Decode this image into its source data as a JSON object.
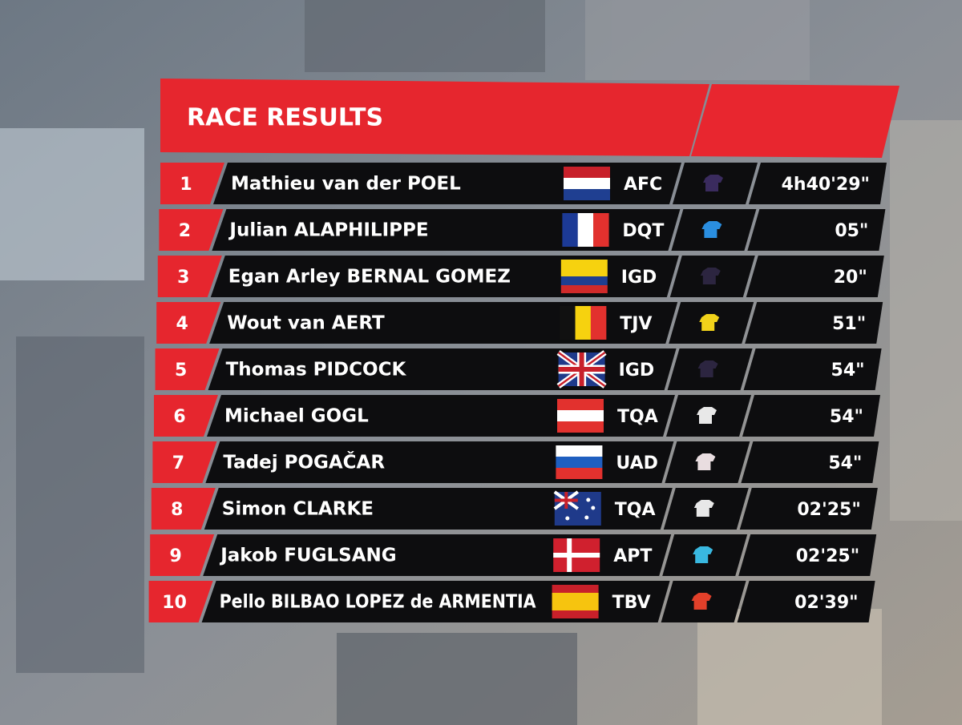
{
  "header": {
    "title": "RACE RESULTS"
  },
  "results": [
    {
      "rank": 1,
      "name": "Mathieu van der POEL",
      "team": "AFC",
      "time": "4h40'29\""
    },
    {
      "rank": 2,
      "name": "Julian ALAPHILIPPE",
      "team": "DQT",
      "time": "05\""
    },
    {
      "rank": 3,
      "name": "Egan Arley BERNAL GOMEZ",
      "team": "IGD",
      "time": "20\""
    },
    {
      "rank": 4,
      "name": "Wout van AERT",
      "team": "TJV",
      "time": "51\""
    },
    {
      "rank": 5,
      "name": "Thomas PIDCOCK",
      "team": "IGD",
      "time": "54\""
    },
    {
      "rank": 6,
      "name": "Michael GOGL",
      "team": "TQA",
      "time": "54\""
    },
    {
      "rank": 7,
      "name": "Tadej POGAČAR",
      "team": "UAD",
      "time": "54\""
    },
    {
      "rank": 8,
      "name": "Simon CLARKE",
      "team": "TQA",
      "time": "02'25\""
    },
    {
      "rank": 9,
      "name": "Jakob FUGLSANG",
      "team": "APT",
      "time": "02'25\""
    },
    {
      "rank": 10,
      "name": "Pello BILBAO LOPEZ de ARMENTIA",
      "team": "TBV",
      "time": "02'39\""
    }
  ]
}
